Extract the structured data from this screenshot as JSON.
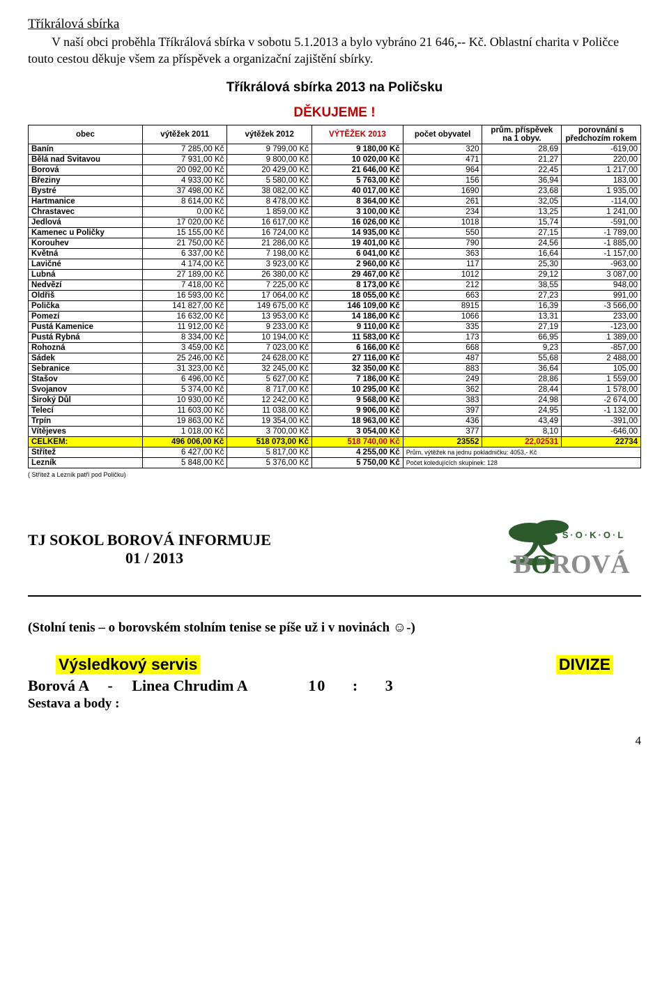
{
  "doc": {
    "title": "Tříkrálová sbírka",
    "intro": "V naší obci proběhla Tříkrálová sbírka v sobotu 5.1.2013 a bylo vybráno 21 646,-- Kč. Oblastní charita v Poličce touto cestou děkuje všem za příspěvek a organizační zajištění sbírky.",
    "chart_title": "Tříkrálová sbírka 2013 na Poličsku",
    "thanks": "DĚKUJEME !",
    "footnote": "( Střítež a Lezník patří pod Poličku)",
    "page_number": "4"
  },
  "columns": [
    "obec",
    "výtěžek 2011",
    "výtěžek 2012",
    "VÝTĚŽEK 2013",
    "počet obyvatel",
    "prům. příspěvek na 1 obyv.",
    "porovnání s předchozím rokem"
  ],
  "rows": [
    {
      "o": "Banín",
      "a": "7 285,00 Kč",
      "b": "9 799,00 Kč",
      "c": "9 180,00 Kč",
      "d": "320",
      "e": "28,69",
      "f": "-619,00"
    },
    {
      "o": "Bělá nad Svitavou",
      "a": "7 931,00 Kč",
      "b": "9 800,00 Kč",
      "c": "10 020,00 Kč",
      "d": "471",
      "e": "21,27",
      "f": "220,00"
    },
    {
      "o": "Borová",
      "a": "20 092,00 Kč",
      "b": "20 429,00 Kč",
      "c": "21 646,00 Kč",
      "d": "964",
      "e": "22,45",
      "f": "1 217,00"
    },
    {
      "o": "Březiny",
      "a": "4 933,00 Kč",
      "b": "5 580,00 Kč",
      "c": "5 763,00 Kč",
      "d": "156",
      "e": "36,94",
      "f": "183,00"
    },
    {
      "o": "Bystré",
      "a": "37 498,00 Kč",
      "b": "38 082,00 Kč",
      "c": "40 017,00 Kč",
      "d": "1690",
      "e": "23,68",
      "f": "1 935,00"
    },
    {
      "o": "Hartmanice",
      "a": "8 614,00 Kč",
      "b": "8 478,00 Kč",
      "c": "8 364,00 Kč",
      "d": "261",
      "e": "32,05",
      "f": "-114,00"
    },
    {
      "o": "Chrastavec",
      "a": "0,00 Kč",
      "b": "1 859,00 Kč",
      "c": "3 100,00 Kč",
      "d": "234",
      "e": "13,25",
      "f": "1 241,00"
    },
    {
      "o": "Jedlová",
      "a": "17 020,00 Kč",
      "b": "16 617,00 Kč",
      "c": "16 026,00 Kč",
      "d": "1018",
      "e": "15,74",
      "f": "-591,00"
    },
    {
      "o": "Kamenec u Poličky",
      "a": "15 155,00 Kč",
      "b": "16 724,00 Kč",
      "c": "14 935,00 Kč",
      "d": "550",
      "e": "27,15",
      "f": "-1 789,00"
    },
    {
      "o": "Korouhev",
      "a": "21 750,00 Kč",
      "b": "21 286,00 Kč",
      "c": "19 401,00 Kč",
      "d": "790",
      "e": "24,56",
      "f": "-1 885,00"
    },
    {
      "o": "Květná",
      "a": "6 337,00 Kč",
      "b": "7 198,00 Kč",
      "c": "6 041,00 Kč",
      "d": "363",
      "e": "16,64",
      "f": "-1 157,00"
    },
    {
      "o": "Lavičné",
      "a": "4 174,00 Kč",
      "b": "3 923,00 Kč",
      "c": "2 960,00 Kč",
      "d": "117",
      "e": "25,30",
      "f": "-963,00"
    },
    {
      "o": "Lubná",
      "a": "27 189,00 Kč",
      "b": "26 380,00 Kč",
      "c": "29 467,00 Kč",
      "d": "1012",
      "e": "29,12",
      "f": "3 087,00"
    },
    {
      "o": "Nedvězí",
      "a": "7 418,00 Kč",
      "b": "7 225,00 Kč",
      "c": "8 173,00 Kč",
      "d": "212",
      "e": "38,55",
      "f": "948,00"
    },
    {
      "o": "Oldřiš",
      "a": "16 593,00 Kč",
      "b": "17 064,00 Kč",
      "c": "18 055,00 Kč",
      "d": "663",
      "e": "27,23",
      "f": "991,00"
    },
    {
      "o": "Polička",
      "a": "141 827,00 Kč",
      "b": "149 675,00 Kč",
      "c": "146 109,00 Kč",
      "d": "8915",
      "e": "16,39",
      "f": "-3 566,00"
    },
    {
      "o": "Pomezí",
      "a": "16 632,00 Kč",
      "b": "13 953,00 Kč",
      "c": "14 186,00 Kč",
      "d": "1066",
      "e": "13,31",
      "f": "233,00"
    },
    {
      "o": "Pustá Kamenice",
      "a": "11 912,00 Kč",
      "b": "9 233,00 Kč",
      "c": "9 110,00 Kč",
      "d": "335",
      "e": "27,19",
      "f": "-123,00"
    },
    {
      "o": "Pustá Rybná",
      "a": "8 334,00 Kč",
      "b": "10 194,00 Kč",
      "c": "11 583,00 Kč",
      "d": "173",
      "e": "66,95",
      "f": "1 389,00"
    },
    {
      "o": "Rohozná",
      "a": "3 459,00 Kč",
      "b": "7 023,00 Kč",
      "c": "6 166,00 Kč",
      "d": "668",
      "e": "9,23",
      "f": "-857,00"
    },
    {
      "o": "Sádek",
      "a": "25 246,00 Kč",
      "b": "24 628,00 Kč",
      "c": "27 116,00 Kč",
      "d": "487",
      "e": "55,68",
      "f": "2 488,00"
    },
    {
      "o": "Sebranice",
      "a": "31 323,00 Kč",
      "b": "32 245,00 Kč",
      "c": "32 350,00 Kč",
      "d": "883",
      "e": "36,64",
      "f": "105,00"
    },
    {
      "o": "Stašov",
      "a": "6 496,00 Kč",
      "b": "5 627,00 Kč",
      "c": "7 186,00 Kč",
      "d": "249",
      "e": "28,86",
      "f": "1 559,00"
    },
    {
      "o": "Svojanov",
      "a": "5 374,00 Kč",
      "b": "8 717,00 Kč",
      "c": "10 295,00 Kč",
      "d": "362",
      "e": "28,44",
      "f": "1 578,00"
    },
    {
      "o": "Široký Důl",
      "a": "10 930,00 Kč",
      "b": "12 242,00 Kč",
      "c": "9 568,00 Kč",
      "d": "383",
      "e": "24,98",
      "f": "-2 674,00"
    },
    {
      "o": "Telecí",
      "a": "11 603,00 Kč",
      "b": "11 038,00 Kč",
      "c": "9 906,00 Kč",
      "d": "397",
      "e": "24,95",
      "f": "-1 132,00"
    },
    {
      "o": "Trpín",
      "a": "19 863,00 Kč",
      "b": "19 354,00 Kč",
      "c": "18 963,00 Kč",
      "d": "436",
      "e": "43,49",
      "f": "-391,00"
    },
    {
      "o": "Vítějeves",
      "a": "1 018,00 Kč",
      "b": "3 700,00 Kč",
      "c": "3 054,00 Kč",
      "d": "377",
      "e": "8,10",
      "f": "-646,00"
    }
  ],
  "total": {
    "o": "CELKEM:",
    "a": "496 006,00 Kč",
    "b": "518 073,00 Kč",
    "c": "518 740,00 Kč",
    "d": "23552",
    "e": "22,02531",
    "f": "22734"
  },
  "extras": [
    {
      "o": "Střítež",
      "a": "6 427,00 Kč",
      "b": "5 817,00 Kč",
      "c": "4 255,00 Kč",
      "note": "Prům. výtěžek na jednu pokladničku: 4053,- Kč"
    },
    {
      "o": "Lezník",
      "a": "5 848,00 Kč",
      "b": "5 376,00 Kč",
      "c": "5 750,00 Kč",
      "note": "Počet koledujících skupinek:  128"
    }
  ],
  "sokol": {
    "heading_line1": "TJ SOKOL BOROVÁ INFORMUJE",
    "heading_line2": "01 / 2013",
    "logo_top": "S · O · K · O · L",
    "logo_bottom": "BOROVÁ",
    "tennis": "(Stolní tenis – o borovském stolním tenise se píše už i v novinách ☺-)",
    "servis_left": "Výsledkový servis",
    "servis_right": "DIVIZE",
    "match_left": "Borová A",
    "match_dash": "-",
    "match_right": "Linea Chrudim A",
    "score_left": "10",
    "score_colon": ":",
    "score_right": "3",
    "sestava": "Sestava a body :"
  },
  "style": {
    "accent_red": "#c00000",
    "highlight": "#ffff00",
    "logo_green": "#2c5a2c",
    "logo_gray": "#8d8d8d"
  }
}
